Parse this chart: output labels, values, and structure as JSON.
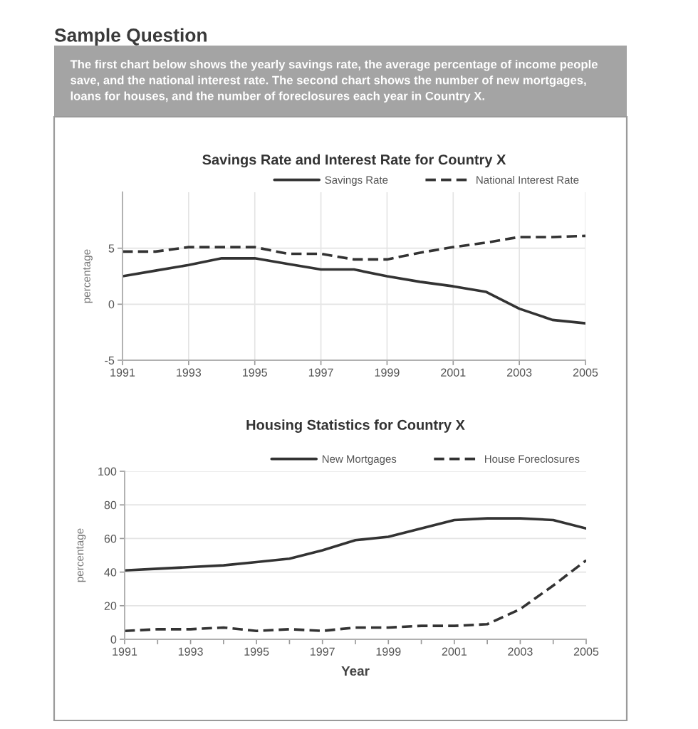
{
  "chart_data": [
    {
      "type": "other",
      "title": "Sample Question",
      "annotations": [
        "The first chart below shows the yearly savings rate, the average percentage of income people\nsave, and the national interest rate. The second chart shows the number of new mortgages,\nloans for houses, and the number of foreclosures each year in Country X."
      ]
    },
    {
      "type": "line",
      "title": "Savings Rate and Interest Rate for Country X",
      "ylabel": "percentage",
      "x": [
        1991,
        1992,
        1993,
        1994,
        1995,
        1996,
        1997,
        1998,
        1999,
        2000,
        2001,
        2002,
        2003,
        2004,
        2005
      ],
      "series": [
        {
          "name": "Savings Rate",
          "color": "#333333",
          "line_style": "solid",
          "values": [
            2.5,
            3.0,
            3.5,
            4.1,
            4.1,
            3.6,
            3.1,
            3.1,
            2.5,
            2.0,
            1.6,
            1.1,
            -0.4,
            -1.4,
            -1.7
          ]
        },
        {
          "name": "National Interest Rate",
          "color": "#333333",
          "line_style": "dashed",
          "values": [
            4.7,
            4.7,
            5.1,
            5.1,
            5.1,
            4.5,
            4.5,
            4.0,
            4.0,
            4.6,
            5.1,
            5.5,
            6.0,
            6.0,
            6.1
          ]
        }
      ],
      "xlim": [
        1991,
        2005
      ],
      "xticks": [
        1991,
        1993,
        1995,
        1997,
        1999,
        2001,
        2003,
        2005
      ],
      "ylim": [
        -5,
        10
      ],
      "yticks": [
        -5,
        0,
        5
      ],
      "grid": true,
      "legend": "top right"
    },
    {
      "type": "line",
      "title": "Housing Statistics for Country X",
      "xlabel": "Year",
      "ylabel": "percentage",
      "x": [
        1991,
        1992,
        1993,
        1994,
        1995,
        1996,
        1997,
        1998,
        1999,
        2000,
        2001,
        2002,
        2003,
        2004,
        2005
      ],
      "series": [
        {
          "name": "New Mortgages",
          "color": "#333333",
          "line_style": "solid",
          "values": [
            41,
            42,
            43,
            44,
            46,
            48,
            53,
            59,
            61,
            66,
            71,
            72,
            72,
            71,
            66
          ]
        },
        {
          "name": "House Foreclosures",
          "color": "#333333",
          "line_style": "dashed",
          "values": [
            5,
            6,
            6,
            7,
            5,
            6,
            5,
            7,
            7,
            8,
            8,
            9,
            18,
            32,
            47
          ]
        }
      ],
      "xlim": [
        1991,
        2005
      ],
      "xticks": [
        1991,
        {
          "value": 1992,
          "label": null
        },
        1993,
        {
          "value": 1994,
          "label": null
        },
        1995,
        {
          "value": 1996,
          "label": null
        },
        1997,
        {
          "value": 1998,
          "label": null
        },
        1999,
        {
          "value": 2000,
          "label": null
        },
        2001,
        {
          "value": 2002,
          "label": null
        },
        2003,
        {
          "value": 2004,
          "label": null
        },
        2005
      ],
      "ylim": [
        0,
        100
      ],
      "yticks": [
        0,
        20,
        40,
        60,
        80,
        100
      ],
      "grid": "y",
      "legend": "top right"
    }
  ]
}
